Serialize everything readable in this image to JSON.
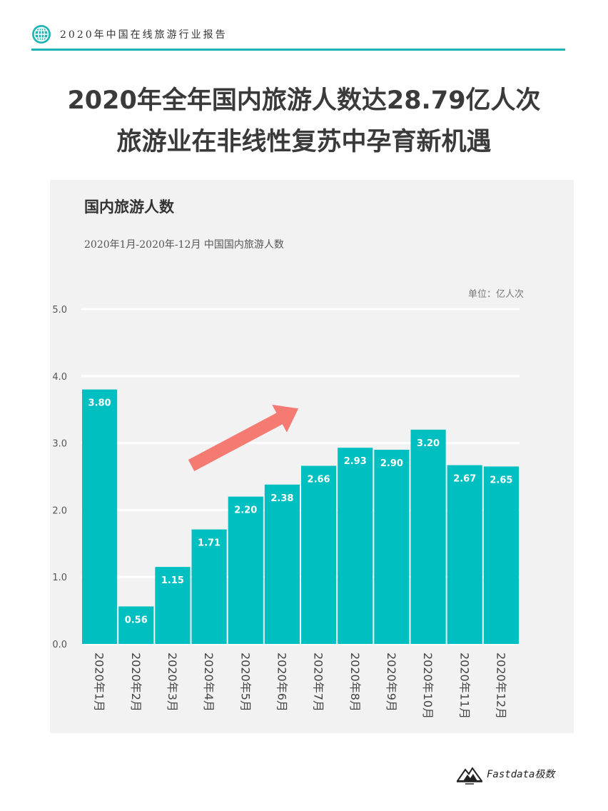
{
  "header": {
    "title": "2020年中国在线旅游行业报告",
    "icon": "globe-icon",
    "accent_color": "#1fb5b4"
  },
  "headline": {
    "line1": "2020年全年国内旅游人数达28.79亿人次",
    "line2": "旅游业在非线性复苏中孕育新机遇"
  },
  "chart_data": {
    "type": "bar",
    "title": "国内旅游人数",
    "subtitle": "2020年1月-2020年-12月 中国国内旅游人数",
    "unit": "单位：亿人次",
    "categories": [
      "2020年1月",
      "2020年2月",
      "2020年3月",
      "2020年4月",
      "2020年5月",
      "2020年6月",
      "2020年7月",
      "2020年8月",
      "2020年9月",
      "2020年10月",
      "2020年11月",
      "2020年12月"
    ],
    "values": [
      3.8,
      0.56,
      1.15,
      1.71,
      2.2,
      2.38,
      2.66,
      2.93,
      2.9,
      3.2,
      2.67,
      2.65
    ],
    "data_labels": [
      "3.80",
      "0.56",
      "1.15",
      "1.71",
      "2.20",
      "2.38",
      "2.66",
      "2.93",
      "2.90",
      "3.20",
      "2.67",
      "2.65"
    ],
    "ylim": [
      0,
      5
    ],
    "y_ticks": [
      "0.0",
      "1.0",
      "2.0",
      "3.0",
      "4.0",
      "5.0"
    ],
    "grid": true,
    "bar_color": "#00bfc1",
    "arrow_color": "#f47a72"
  },
  "footer": {
    "logo_text": "Fastdata极数",
    "logo_icon": "mountain-logo-icon"
  }
}
